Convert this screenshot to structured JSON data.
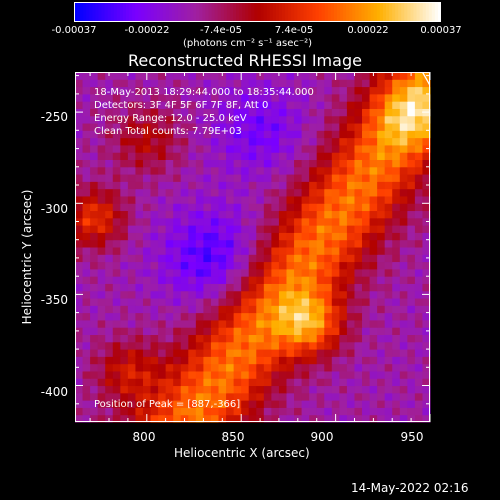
{
  "colorbar": {
    "ticks": [
      "-0.00037",
      "-0.00022",
      "-7.4e-05",
      "7.4e-05",
      "0.00022",
      "0.00037"
    ],
    "unit_label": "(photons cm⁻² s⁻¹ asec⁻²)",
    "colors": [
      "#0000ff",
      "#7a00ff",
      "#a020a0",
      "#b00000",
      "#ff4000",
      "#ffb000",
      "#ffffff"
    ],
    "range": [
      -0.00037,
      0.00037
    ]
  },
  "chart_data": {
    "type": "heatmap",
    "title": "Reconstructed RHESSI Image",
    "xlabel": "Heliocentric X (arcsec)",
    "ylabel": "Heliocentric Y (arcsec)",
    "xlim": [
      762,
      950
    ],
    "ylim": [
      -420,
      -228
    ],
    "xticks": [
      800,
      850,
      900,
      950
    ],
    "yticks": [
      -250,
      -300,
      -350,
      -400
    ],
    "limb_color": "#ffffff",
    "peak": {
      "x": 887,
      "y": -366
    },
    "annotations": {
      "time_range": "18-May-2013 18:29:44.000 to 18:35:44.000",
      "detectors": "Detectors: 3F 4F 5F 6F 7F 8F, Att 0",
      "energy_range": "Energy Range: 12.0 - 25.0 keV",
      "clean_counts": "Clean    Total counts: 7.79E+03",
      "peak_position": "Position of Peak = [887,-366]"
    }
  },
  "footer": {
    "timestamp": "14-May-2022 02:16"
  }
}
